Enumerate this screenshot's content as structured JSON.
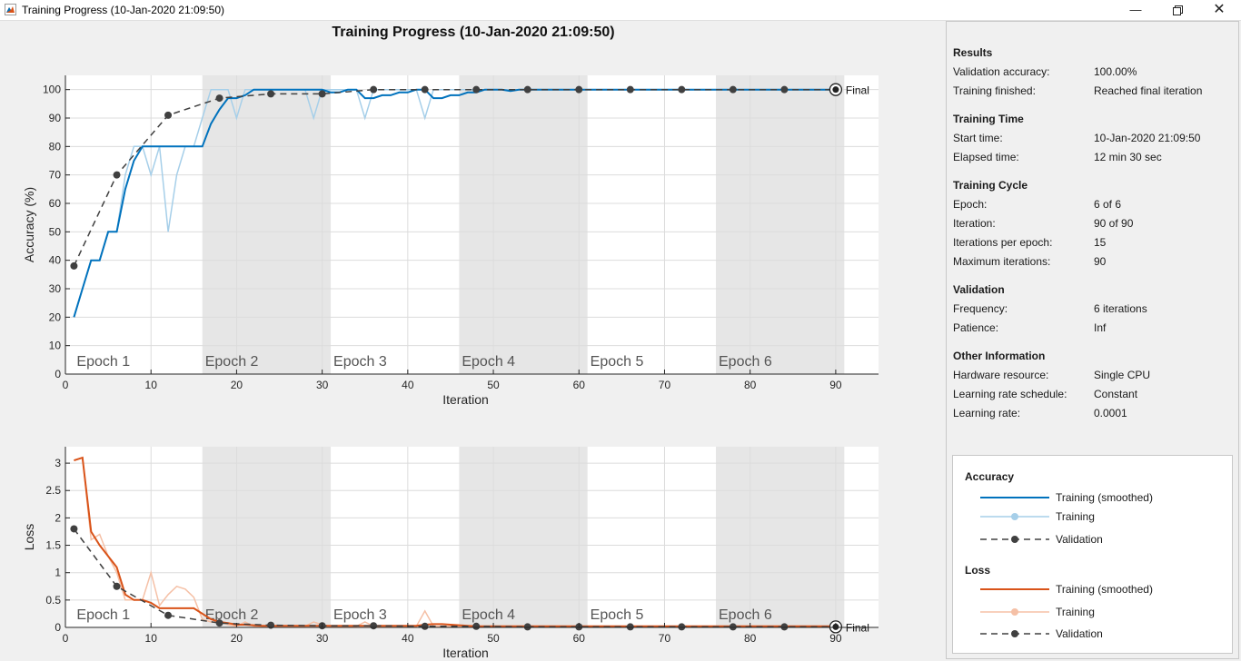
{
  "window": {
    "title": "Training Progress (10-Jan-2020 21:09:50)",
    "minimize_icon": "minimize-icon",
    "restore_icon": "restore-icon",
    "close_icon": "close-icon"
  },
  "figure_title": "Training Progress (10-Jan-2020 21:09:50)",
  "colors": {
    "accuracy_smoothed": "#0072bd",
    "accuracy_raw": "#a6cfe9",
    "loss_smoothed": "#d95319",
    "loss_raw": "#f5c0a6",
    "validation": "#404040",
    "epoch_shade": "#e6e6e6"
  },
  "chart_data": [
    {
      "type": "line",
      "xlabel": "Iteration",
      "ylabel": "Accuracy (%)",
      "xlim": [
        0,
        95
      ],
      "ylim": [
        0,
        105
      ],
      "xticks": [
        0,
        10,
        20,
        30,
        40,
        50,
        60,
        70,
        80,
        90
      ],
      "yticks": [
        0,
        10,
        20,
        30,
        40,
        50,
        60,
        70,
        80,
        90,
        100
      ],
      "grid": true,
      "epochs": [
        {
          "label": "Epoch 1",
          "start": 1,
          "end": 16,
          "shaded": false
        },
        {
          "label": "Epoch 2",
          "start": 16,
          "end": 31,
          "shaded": true
        },
        {
          "label": "Epoch 3",
          "start": 31,
          "end": 46,
          "shaded": false
        },
        {
          "label": "Epoch 4",
          "start": 46,
          "end": 61,
          "shaded": true
        },
        {
          "label": "Epoch 5",
          "start": 61,
          "end": 76,
          "shaded": false
        },
        {
          "label": "Epoch 6",
          "start": 76,
          "end": 91,
          "shaded": true
        }
      ],
      "final_label": "Final",
      "final_point": {
        "x": 90,
        "y": 100
      },
      "series": [
        {
          "name": "Training (smoothed)",
          "x": [
            1,
            2,
            3,
            4,
            5,
            6,
            7,
            8,
            9,
            10,
            11,
            12,
            13,
            14,
            15,
            16,
            17,
            18,
            19,
            20,
            21,
            22,
            23,
            24,
            25,
            26,
            27,
            28,
            29,
            30,
            31,
            32,
            33,
            34,
            35,
            36,
            37,
            38,
            39,
            40,
            41,
            42,
            43,
            44,
            45,
            46,
            47,
            48,
            49,
            50,
            51,
            52,
            53,
            54,
            55,
            56,
            57,
            58,
            59,
            60,
            61,
            62,
            63,
            64,
            65,
            66,
            67,
            68,
            69,
            70,
            71,
            72,
            73,
            74,
            75,
            76,
            77,
            78,
            79,
            80,
            81,
            82,
            83,
            84,
            85,
            86,
            87,
            88,
            89,
            90
          ],
          "y": [
            20,
            30,
            40,
            40,
            50,
            50,
            65,
            75,
            80,
            80,
            80,
            80,
            80,
            80,
            80,
            80,
            88,
            93,
            97,
            97,
            98,
            100,
            100,
            100,
            100,
            100,
            100,
            100,
            100,
            100,
            99,
            99,
            100,
            100,
            97,
            97,
            98,
            98,
            99,
            99,
            100,
            100,
            97,
            97,
            98,
            98,
            99,
            99,
            100,
            100,
            100,
            99.5,
            100,
            100,
            100,
            100,
            100,
            100,
            100,
            100,
            100,
            100,
            100,
            100,
            100,
            100,
            100,
            100,
            100,
            100,
            100,
            100,
            100,
            100,
            100,
            100,
            100,
            100,
            100,
            100,
            100,
            100,
            100,
            100,
            100,
            100,
            100,
            100,
            100,
            100
          ]
        },
        {
          "name": "Training",
          "x": [
            1,
            2,
            3,
            4,
            5,
            6,
            7,
            8,
            9,
            10,
            11,
            12,
            13,
            14,
            15,
            16,
            17,
            18,
            19,
            20,
            21,
            22,
            23,
            24,
            25,
            26,
            27,
            28,
            29,
            30,
            31,
            32,
            33,
            34,
            35,
            36,
            37,
            38,
            39,
            40,
            41,
            42,
            43,
            44,
            45,
            46,
            47,
            48,
            49,
            50,
            51,
            52,
            53,
            54,
            55,
            56,
            57,
            58,
            59,
            60,
            61,
            62,
            63,
            64,
            65,
            66,
            67,
            68,
            69,
            70,
            71,
            72,
            73,
            74,
            75,
            76,
            77,
            78,
            79,
            80,
            81,
            82,
            83,
            84,
            85,
            86,
            87,
            88,
            89,
            90
          ],
          "y": [
            20,
            30,
            40,
            40,
            50,
            50,
            70,
            80,
            80,
            70,
            80,
            50,
            70,
            80,
            80,
            90,
            100,
            100,
            100,
            90,
            100,
            100,
            100,
            100,
            100,
            100,
            100,
            100,
            90,
            100,
            100,
            100,
            100,
            100,
            90,
            100,
            100,
            100,
            100,
            100,
            100,
            90,
            100,
            100,
            100,
            100,
            100,
            100,
            100,
            100,
            100,
            100,
            100,
            100,
            100,
            100,
            100,
            100,
            100,
            100,
            100,
            100,
            100,
            100,
            100,
            100,
            100,
            100,
            100,
            100,
            100,
            100,
            100,
            100,
            100,
            100,
            100,
            100,
            100,
            100,
            100,
            100,
            100,
            100,
            100,
            100,
            100,
            100,
            100,
            100
          ]
        },
        {
          "name": "Validation",
          "x": [
            1,
            6,
            12,
            18,
            24,
            30,
            36,
            42,
            48,
            54,
            60,
            66,
            72,
            78,
            84,
            90
          ],
          "y": [
            38,
            70,
            91,
            97,
            98.5,
            98.5,
            100,
            100,
            100,
            100,
            100,
            100,
            100,
            100,
            100,
            100
          ]
        }
      ]
    },
    {
      "type": "line",
      "xlabel": "Iteration",
      "ylabel": "Loss",
      "xlim": [
        0,
        95
      ],
      "ylim": [
        0,
        3.3
      ],
      "xticks": [
        0,
        10,
        20,
        30,
        40,
        50,
        60,
        70,
        80,
        90
      ],
      "yticks": [
        0,
        0.5,
        1,
        1.5,
        2,
        2.5,
        3
      ],
      "grid": true,
      "epochs": [
        {
          "label": "Epoch 1",
          "start": 1,
          "end": 16,
          "shaded": false
        },
        {
          "label": "Epoch 2",
          "start": 16,
          "end": 31,
          "shaded": true
        },
        {
          "label": "Epoch 3",
          "start": 31,
          "end": 46,
          "shaded": false
        },
        {
          "label": "Epoch 4",
          "start": 46,
          "end": 61,
          "shaded": true
        },
        {
          "label": "Epoch 5",
          "start": 61,
          "end": 76,
          "shaded": false
        },
        {
          "label": "Epoch 6",
          "start": 76,
          "end": 91,
          "shaded": true
        }
      ],
      "final_label": "Final",
      "final_point": {
        "x": 90,
        "y": 0.01
      },
      "series": [
        {
          "name": "Training (smoothed)",
          "x": [
            1,
            2,
            3,
            4,
            5,
            6,
            7,
            8,
            9,
            10,
            11,
            12,
            13,
            14,
            15,
            16,
            17,
            18,
            19,
            20,
            21,
            22,
            23,
            24,
            25,
            26,
            27,
            28,
            29,
            30,
            31,
            32,
            33,
            34,
            35,
            36,
            37,
            38,
            39,
            40,
            41,
            42,
            43,
            44,
            45,
            46,
            47,
            48,
            49,
            50,
            51,
            52,
            53,
            54,
            55,
            56,
            57,
            58,
            59,
            60,
            61,
            62,
            63,
            64,
            65,
            66,
            67,
            68,
            69,
            70,
            71,
            72,
            73,
            74,
            75,
            76,
            77,
            78,
            79,
            80,
            81,
            82,
            83,
            84,
            85,
            86,
            87,
            88,
            89,
            90
          ],
          "y": [
            3.05,
            3.1,
            1.75,
            1.5,
            1.3,
            1.1,
            0.6,
            0.5,
            0.5,
            0.45,
            0.35,
            0.35,
            0.35,
            0.35,
            0.35,
            0.25,
            0.15,
            0.1,
            0.08,
            0.05,
            0.05,
            0.04,
            0.03,
            0.03,
            0.03,
            0.03,
            0.03,
            0.03,
            0.03,
            0.03,
            0.03,
            0.03,
            0.03,
            0.03,
            0.03,
            0.03,
            0.03,
            0.03,
            0.03,
            0.03,
            0.03,
            0.05,
            0.06,
            0.06,
            0.05,
            0.04,
            0.03,
            0.02,
            0.02,
            0.02,
            0.02,
            0.02,
            0.02,
            0.02,
            0.02,
            0.02,
            0.02,
            0.02,
            0.02,
            0.02,
            0.02,
            0.02,
            0.02,
            0.02,
            0.02,
            0.02,
            0.02,
            0.02,
            0.02,
            0.02,
            0.02,
            0.02,
            0.02,
            0.02,
            0.02,
            0.02,
            0.02,
            0.02,
            0.02,
            0.02,
            0.02,
            0.02,
            0.02,
            0.02,
            0.02,
            0.02,
            0.02,
            0.02,
            0.02,
            0.02
          ]
        },
        {
          "name": "Training",
          "x": [
            1,
            2,
            3,
            4,
            5,
            6,
            7,
            8,
            9,
            10,
            11,
            12,
            13,
            14,
            15,
            16,
            17,
            18,
            19,
            20,
            21,
            22,
            23,
            24,
            25,
            26,
            27,
            28,
            29,
            30,
            31,
            32,
            33,
            34,
            35,
            36,
            37,
            38,
            39,
            40,
            41,
            42,
            43,
            44,
            45,
            46,
            47,
            48,
            49,
            50,
            51,
            52,
            53,
            54,
            55,
            56,
            57,
            58,
            59,
            60,
            61,
            62,
            63,
            64,
            65,
            66,
            67,
            68,
            69,
            70,
            71,
            72,
            73,
            74,
            75,
            76,
            77,
            78,
            79,
            80,
            81,
            82,
            83,
            84,
            85,
            86,
            87,
            88,
            89,
            90
          ],
          "y": [
            3.05,
            3.1,
            1.6,
            1.7,
            1.3,
            1.0,
            0.5,
            0.5,
            0.5,
            1.0,
            0.4,
            0.6,
            0.75,
            0.7,
            0.55,
            0.15,
            0.1,
            0.1,
            0.05,
            0.02,
            0.1,
            0.02,
            0.02,
            0.02,
            0.02,
            0.02,
            0.02,
            0.02,
            0.1,
            0.05,
            0.02,
            0.02,
            0.02,
            0.02,
            0.1,
            0.02,
            0.02,
            0.02,
            0.02,
            0.02,
            0.02,
            0.3,
            0.02,
            0.02,
            0.02,
            0.02,
            0.02,
            0.02,
            0.02,
            0.02,
            0.02,
            0.02,
            0.02,
            0.02,
            0.02,
            0.02,
            0.02,
            0.02,
            0.02,
            0.02,
            0.02,
            0.02,
            0.02,
            0.02,
            0.02,
            0.02,
            0.02,
            0.02,
            0.02,
            0.02,
            0.02,
            0.02,
            0.02,
            0.02,
            0.02,
            0.02,
            0.02,
            0.02,
            0.02,
            0.02,
            0.02,
            0.02,
            0.02,
            0.02,
            0.02,
            0.02,
            0.02,
            0.02,
            0.02,
            0.02
          ]
        },
        {
          "name": "Validation",
          "x": [
            1,
            6,
            12,
            18,
            24,
            30,
            36,
            42,
            48,
            54,
            60,
            66,
            72,
            78,
            84,
            90
          ],
          "y": [
            1.8,
            0.75,
            0.22,
            0.08,
            0.04,
            0.03,
            0.03,
            0.02,
            0.02,
            0.01,
            0.01,
            0.01,
            0.01,
            0.01,
            0.01,
            0.01
          ]
        }
      ]
    }
  ],
  "panel": {
    "results": {
      "heading": "Results",
      "rows": [
        {
          "label": "Validation accuracy:",
          "value": "100.00%"
        },
        {
          "label": "Training finished:",
          "value": "Reached final iteration"
        }
      ]
    },
    "training_time": {
      "heading": "Training Time",
      "rows": [
        {
          "label": "Start time:",
          "value": "10-Jan-2020 21:09:50"
        },
        {
          "label": "Elapsed time:",
          "value": "12 min 30 sec"
        }
      ]
    },
    "training_cycle": {
      "heading": "Training Cycle",
      "rows": [
        {
          "label": "Epoch:",
          "value": "6 of 6"
        },
        {
          "label": "Iteration:",
          "value": "90 of 90"
        },
        {
          "label": "Iterations per epoch:",
          "value": "15"
        },
        {
          "label": "Maximum iterations:",
          "value": "90"
        }
      ]
    },
    "validation": {
      "heading": "Validation",
      "rows": [
        {
          "label": "Frequency:",
          "value": "6 iterations"
        },
        {
          "label": "Patience:",
          "value": "Inf"
        }
      ]
    },
    "other": {
      "heading": "Other Information",
      "rows": [
        {
          "label": "Hardware resource:",
          "value": "Single CPU"
        },
        {
          "label": "Learning rate schedule:",
          "value": "Constant"
        },
        {
          "label": "Learning rate:",
          "value": "0.0001"
        }
      ]
    }
  },
  "legend": {
    "accuracy": {
      "heading": "Accuracy",
      "smoothed": "Training (smoothed)",
      "training": "Training",
      "validation": "Validation"
    },
    "loss": {
      "heading": "Loss",
      "smoothed": "Training (smoothed)",
      "training": "Training",
      "validation": "Validation"
    }
  }
}
